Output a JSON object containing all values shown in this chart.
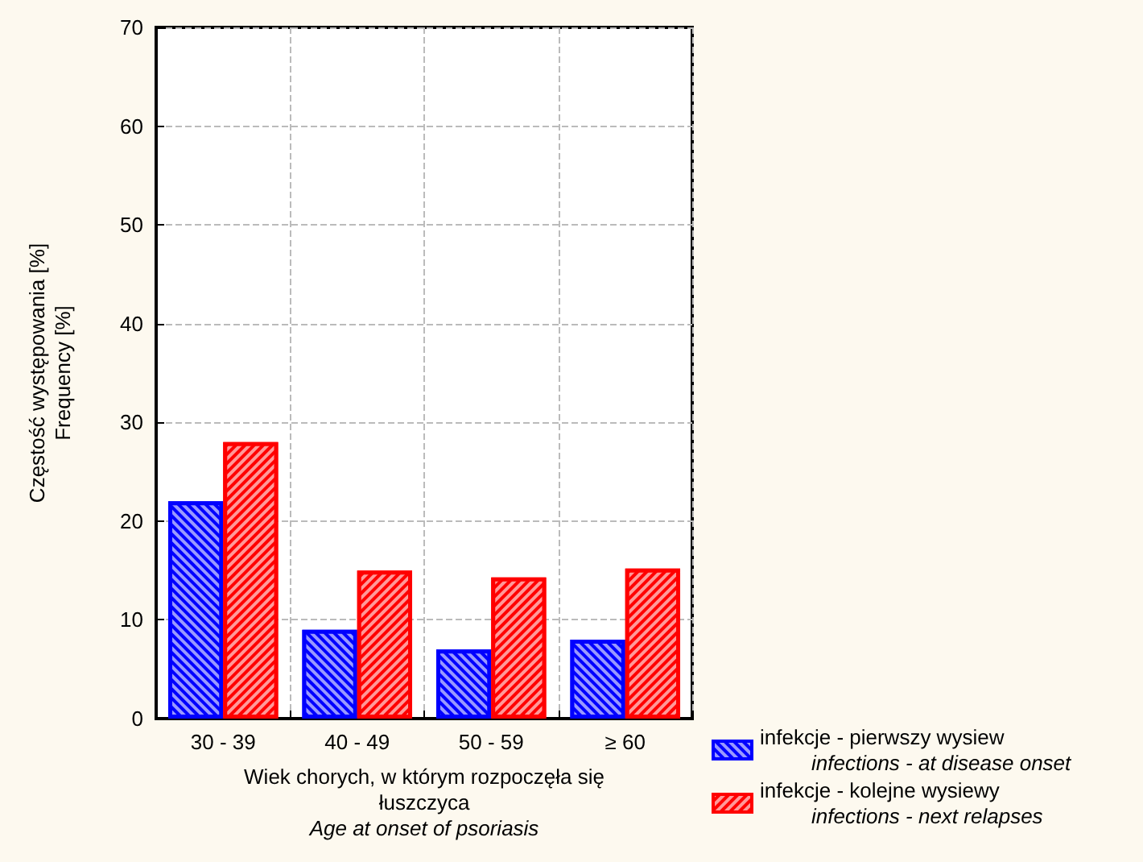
{
  "chart_data": {
    "type": "bar",
    "categories": [
      "30 - 39",
      "40 - 49",
      "50 - 59",
      "≥ 60"
    ],
    "xlabel": "Wiek chorych, w którym rozpoczęła się\nłuszczyca\nAge at onset of psoriasis",
    "ylabel": "Częstość występowania [%]\nFrequency [%]",
    "series": [
      {
        "name": "infekcje - pierwszy wysiew\ninfections - at disease onset",
        "color": "#0000ff",
        "values": [
          22,
          9,
          7,
          8
        ]
      },
      {
        "name": "infekcje - kolejne wysiewy\ninfections - next relapses",
        "color": "#ff0000",
        "values": [
          28,
          15,
          14.3,
          15.2
        ]
      }
    ],
    "ylim": [
      0,
      70
    ],
    "yticks": [
      0,
      10,
      20,
      30,
      40,
      50,
      60,
      70
    ],
    "grid": true,
    "legend": "bottom right"
  }
}
